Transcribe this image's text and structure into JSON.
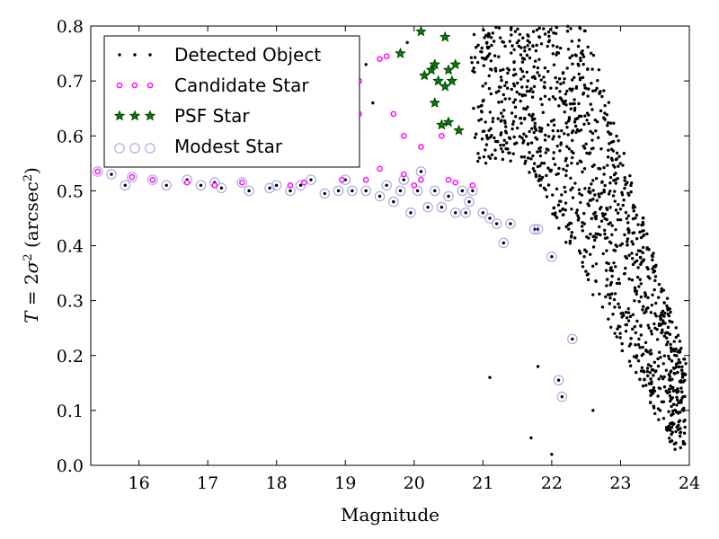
{
  "chart_data": {
    "type": "scatter",
    "title": "",
    "xlabel": "Magnitude",
    "ylabel_parts": {
      "lhs": "T",
      "eq": " = 2",
      "sigma": "σ",
      "exp": "2",
      "unit_open": " (arcsec",
      "unit_exp": "2",
      "unit_close": ")"
    },
    "xlim": [
      15.3,
      24.0
    ],
    "ylim": [
      0.0,
      0.8
    ],
    "xticks": [
      16,
      17,
      18,
      19,
      20,
      21,
      22,
      23,
      24
    ],
    "yticks": [
      0.0,
      0.1,
      0.2,
      0.3,
      0.4,
      0.5,
      0.6,
      0.7,
      0.8
    ],
    "ytick_labels": [
      "0.0",
      "0.1",
      "0.2",
      "0.3",
      "0.4",
      "0.5",
      "0.6",
      "0.7",
      "0.8"
    ],
    "grid": false,
    "legend_placement": "top-left",
    "colors": {
      "detected": "#000000",
      "candidate": "#ff00ff",
      "psf": "#008000",
      "modest": "#aaaaee"
    },
    "series": [
      {
        "name": "Modest Star",
        "marker": "open-circle",
        "points": [
          [
            15.4,
            0.535
          ],
          [
            15.6,
            0.53
          ],
          [
            15.8,
            0.51
          ],
          [
            15.9,
            0.525
          ],
          [
            16.2,
            0.52
          ],
          [
            16.4,
            0.51
          ],
          [
            16.7,
            0.52
          ],
          [
            16.9,
            0.51
          ],
          [
            17.1,
            0.515
          ],
          [
            17.2,
            0.505
          ],
          [
            17.5,
            0.515
          ],
          [
            17.6,
            0.5
          ],
          [
            17.9,
            0.505
          ],
          [
            18.0,
            0.51
          ],
          [
            18.2,
            0.5
          ],
          [
            18.35,
            0.51
          ],
          [
            18.5,
            0.52
          ],
          [
            18.7,
            0.495
          ],
          [
            18.9,
            0.5
          ],
          [
            19.0,
            0.52
          ],
          [
            19.1,
            0.5
          ],
          [
            19.3,
            0.5
          ],
          [
            19.5,
            0.49
          ],
          [
            19.6,
            0.51
          ],
          [
            19.7,
            0.48
          ],
          [
            19.8,
            0.5
          ],
          [
            19.85,
            0.52
          ],
          [
            19.95,
            0.46
          ],
          [
            20.05,
            0.5
          ],
          [
            20.1,
            0.535
          ],
          [
            20.2,
            0.47
          ],
          [
            20.3,
            0.5
          ],
          [
            20.4,
            0.47
          ],
          [
            20.5,
            0.49
          ],
          [
            20.6,
            0.46
          ],
          [
            20.7,
            0.5
          ],
          [
            20.75,
            0.46
          ],
          [
            20.8,
            0.48
          ],
          [
            20.85,
            0.5
          ],
          [
            21.0,
            0.46
          ],
          [
            21.1,
            0.45
          ],
          [
            21.2,
            0.44
          ],
          [
            21.3,
            0.405
          ],
          [
            21.4,
            0.44
          ],
          [
            21.75,
            0.43
          ],
          [
            21.8,
            0.43
          ],
          [
            22.0,
            0.38
          ],
          [
            22.1,
            0.155
          ],
          [
            22.15,
            0.125
          ],
          [
            22.3,
            0.23
          ]
        ]
      },
      {
        "name": "Candidate Star",
        "marker": "ring-dot",
        "points": [
          [
            15.4,
            0.535
          ],
          [
            15.9,
            0.525
          ],
          [
            16.2,
            0.52
          ],
          [
            16.7,
            0.515
          ],
          [
            17.1,
            0.51
          ],
          [
            17.5,
            0.515
          ],
          [
            18.2,
            0.51
          ],
          [
            18.4,
            0.515
          ],
          [
            18.95,
            0.52
          ],
          [
            19.3,
            0.52
          ],
          [
            19.5,
            0.54
          ],
          [
            19.85,
            0.53
          ],
          [
            20.0,
            0.51
          ],
          [
            20.1,
            0.52
          ],
          [
            20.5,
            0.52
          ],
          [
            20.6,
            0.515
          ],
          [
            20.85,
            0.51
          ],
          [
            19.5,
            0.74
          ],
          [
            19.6,
            0.745
          ],
          [
            19.2,
            0.7
          ],
          [
            19.7,
            0.64
          ],
          [
            19.85,
            0.6
          ],
          [
            20.1,
            0.58
          ],
          [
            19.2,
            0.64
          ],
          [
            20.4,
            0.6
          ]
        ]
      },
      {
        "name": "PSF Star",
        "marker": "star",
        "points": [
          [
            20.1,
            0.79
          ],
          [
            20.45,
            0.78
          ],
          [
            20.25,
            0.72
          ],
          [
            20.3,
            0.73
          ],
          [
            20.15,
            0.71
          ],
          [
            20.35,
            0.7
          ],
          [
            20.5,
            0.72
          ],
          [
            20.6,
            0.73
          ],
          [
            20.55,
            0.7
          ],
          [
            20.3,
            0.66
          ],
          [
            20.4,
            0.62
          ],
          [
            20.5,
            0.625
          ],
          [
            20.65,
            0.61
          ],
          [
            19.8,
            0.75
          ],
          [
            20.45,
            0.69
          ]
        ]
      },
      {
        "name": "Detected Object",
        "marker": "dot",
        "points": "generated"
      }
    ]
  },
  "legend": [
    {
      "label": "Detected Object",
      "marker": "dot"
    },
    {
      "label": "Candidate Star",
      "marker": "ring-dot"
    },
    {
      "label": "PSF Star",
      "marker": "star"
    },
    {
      "label": "Modest Star",
      "marker": "open-circle"
    }
  ]
}
